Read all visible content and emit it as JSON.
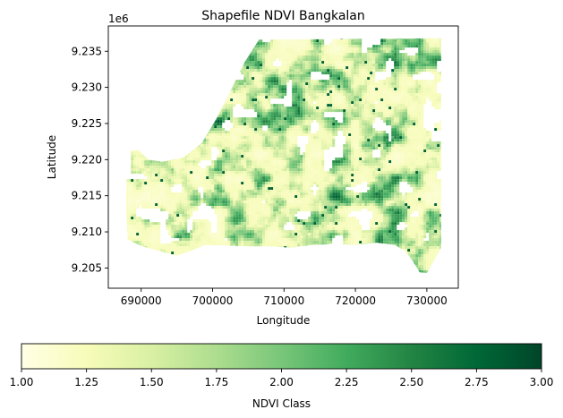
{
  "chart_data": {
    "type": "heatmap",
    "title": "Shapefile NDVI Bangkalan",
    "xlabel": "Longitude",
    "ylabel": "Latitude",
    "y_offset_label": "1e6",
    "xlim": [
      685400,
      734400
    ],
    "ylim": [
      9.2022,
      9.2385
    ],
    "x_ticks": [
      690000,
      700000,
      710000,
      720000,
      730000
    ],
    "x_tick_labels": [
      "690000",
      "700000",
      "710000",
      "720000",
      "730000"
    ],
    "y_ticks": [
      9.205,
      9.21,
      9.215,
      9.22,
      9.225,
      9.23,
      9.235
    ],
    "y_tick_labels": [
      "9.205",
      "9.210",
      "9.215",
      "9.220",
      "9.225",
      "9.230",
      "9.235"
    ],
    "grid": false,
    "colormap": "YlGn",
    "colormap_stops": [
      "#ffffe5",
      "#f7fcb9",
      "#d9f0a3",
      "#addd8e",
      "#78c679",
      "#41ab5d",
      "#238443",
      "#006837",
      "#004529"
    ],
    "value_range": [
      1.0,
      3.0
    ],
    "colorbar": {
      "label": "NDVI Class",
      "orientation": "horizontal",
      "placement": "bottom",
      "ticks": [
        1.0,
        1.25,
        1.5,
        1.75,
        2.0,
        2.25,
        2.5,
        2.75,
        3.0
      ],
      "tick_labels": [
        "1.00",
        "1.25",
        "1.50",
        "1.75",
        "2.00",
        "2.25",
        "2.50",
        "2.75",
        "3.00"
      ]
    },
    "region_outline": [
      [
        688200,
        9.2212
      ],
      [
        689600,
        9.2213
      ],
      [
        691000,
        9.22
      ],
      [
        693000,
        9.2197
      ],
      [
        696000,
        9.2203
      ],
      [
        698500,
        9.2223
      ],
      [
        700500,
        9.2256
      ],
      [
        702500,
        9.2295
      ],
      [
        704500,
        9.2335
      ],
      [
        706500,
        9.2366
      ],
      [
        732000,
        9.2368
      ],
      [
        732000,
        9.2078
      ],
      [
        731000,
        9.206
      ],
      [
        730000,
        9.2043
      ],
      [
        729000,
        9.2044
      ],
      [
        728000,
        9.206
      ],
      [
        727000,
        9.2073
      ],
      [
        725500,
        9.2082
      ],
      [
        723000,
        9.2085
      ],
      [
        720000,
        9.2082
      ],
      [
        717000,
        9.2083
      ],
      [
        714000,
        9.2082
      ],
      [
        711000,
        9.2078
      ],
      [
        708000,
        9.208
      ],
      [
        705000,
        9.208
      ],
      [
        702000,
        9.2081
      ],
      [
        699000,
        9.2082
      ],
      [
        697000,
        9.2074
      ],
      [
        695000,
        9.2067
      ],
      [
        692000,
        9.2075
      ],
      [
        690500,
        9.2079
      ],
      [
        689200,
        9.2084
      ],
      [
        688100,
        9.209
      ],
      [
        687900,
        9.214
      ],
      [
        688000,
        9.218
      ]
    ]
  }
}
